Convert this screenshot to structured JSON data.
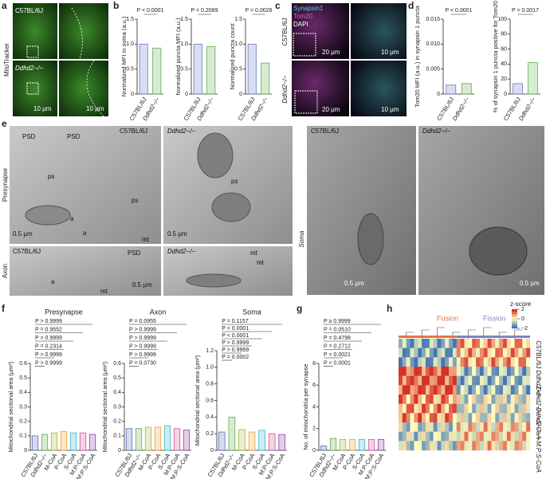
{
  "panel_labels": [
    "a",
    "b",
    "c",
    "d",
    "e",
    "f",
    "g",
    "h"
  ],
  "a": {
    "strain_labels": [
      "C57BL/6J",
      "Ddhd2−/−"
    ],
    "stain": "MitoTracker",
    "scale_bars": [
      "10 μm",
      "10 μm"
    ]
  },
  "c": {
    "stains": [
      "Synapsin1",
      "Tom20",
      "DAPI"
    ],
    "strain_labels": [
      "C57BL/6J",
      "Ddhd2−/−"
    ],
    "scale_bars": [
      "20 μm",
      "10 μm",
      "20 μm",
      "10 μm"
    ]
  },
  "e": {
    "row_labels": [
      "Presynapse",
      "Axon",
      "Soma"
    ],
    "image_titles": [
      "C57BL/6J",
      "Ddhd2−/−",
      "C57BL/6J",
      "Ddhd2−/−",
      "C57BL/6J",
      "Ddhd2−/−"
    ],
    "annotations": [
      "PSD",
      "PSD",
      "ps",
      "ps",
      "ps",
      "a",
      "a",
      "mt",
      "mt",
      "PSD",
      "a",
      "mt",
      "mt"
    ],
    "scale_bars": [
      "0.5 μm",
      "0.5 μm",
      "0.5 μm",
      "0.5 μm",
      "0.5 μm"
    ]
  },
  "h": {
    "title": "z-score",
    "ticks": [
      2,
      0,
      {
        "value": -2,
        "label": "−2"
      }
    ],
    "clusters": [
      "Fusion",
      "Fission"
    ],
    "row_labels": [
      "C57BL/6J",
      "Ddhd2−/−",
      "Ddhd2−/− +S-CoA",
      "Ddhd2−/− +M:P:S-CoA"
    ]
  },
  "chart_data": [
    {
      "type": "bar",
      "ylabel": "Normalized MFI in soma (a.u.)",
      "categories": [
        "C57BL/6J",
        "Ddhd2−/−"
      ],
      "values": [
        1.0,
        0.92
      ],
      "colors": [
        "#6b78c4",
        "#5fae4e"
      ],
      "ylim": [
        0,
        1.5
      ],
      "yticks": [
        0,
        0.5,
        {
          "value": 1,
          "label": "1.0"
        },
        1.5
      ],
      "annotations": [
        "P < 0.0001"
      ]
    },
    {
      "type": "bar",
      "ylabel": "Normalized puncta MFI (a.u.)",
      "categories": [
        "C57BL/6J",
        "Ddhd2−/−"
      ],
      "values": [
        1.0,
        0.95
      ],
      "colors": [
        "#6b78c4",
        "#5fae4e"
      ],
      "ylim": [
        0,
        1.5
      ],
      "yticks": [
        0,
        0.5,
        {
          "value": 1,
          "label": "1.0"
        },
        1.5
      ],
      "annotations": [
        "P = 0.2089"
      ]
    },
    {
      "type": "bar",
      "ylabel": "Normalized puncta count",
      "categories": [
        "C57BL/6J",
        "Ddhd2−/−"
      ],
      "values": [
        1.0,
        0.62
      ],
      "colors": [
        "#6b78c4",
        "#5fae4e"
      ],
      "ylim": [
        0,
        1.5
      ],
      "yticks": [
        0,
        0.5,
        {
          "value": 1,
          "label": "1.0"
        },
        1.5
      ],
      "annotations": [
        "P = 0.0026"
      ]
    },
    {
      "type": "bar",
      "ylabel": "Tom20 MFI (a.u.) in synapsin 1 puncta",
      "categories": [
        "C57BL/6J",
        "Ddhd2−/−"
      ],
      "values": [
        0.0018,
        0.0021
      ],
      "colors": [
        "#6b78c4",
        "#5fae4e"
      ],
      "ylim": [
        0,
        0.015
      ],
      "yticks": [
        0,
        0.005,
        {
          "value": 0.01,
          "label": "0.010"
        },
        0.015
      ],
      "annotations": [
        "P < 0.0001"
      ]
    },
    {
      "type": "bar",
      "ylabel": "% of synapsin 1 puncta positive for Tom20",
      "categories": [
        "C57BL/6J",
        "Ddhd2−/−"
      ],
      "values": [
        14,
        42
      ],
      "colors": [
        "#6b78c4",
        "#5fae4e"
      ],
      "ylim": [
        0,
        100
      ],
      "yticks": [
        0,
        20,
        40,
        60,
        80,
        100
      ],
      "annotations": [
        "P = 0.0017"
      ]
    },
    {
      "type": "bar",
      "title": "Presynapse",
      "ylabel": "Mitochondrial sectional area (μm²)",
      "categories": [
        "C57BL/6J",
        "Ddhd2−/−",
        "M-CoA",
        "P-CoA",
        "S-CoA",
        "M:P-CoA",
        "M:P:S-CoA"
      ],
      "values": [
        0.1,
        0.11,
        0.12,
        0.13,
        0.12,
        0.12,
        0.11
      ],
      "colors": [
        "#5b6bbf",
        "#5fae4e",
        "#a8b834",
        "#f0a030",
        "#35b6c9",
        "#d84f9a",
        "#8a3fa8"
      ],
      "ylim": [
        0,
        0.6
      ],
      "yticks": [
        0,
        0.1,
        0.2,
        0.3,
        0.4,
        0.5,
        0.6
      ],
      "annotations": [
        "P > 0.9999",
        "P = 0.9552",
        "P > 0.9999",
        "P = 0.2314",
        "P > 0.9999",
        "P > 0.9999"
      ]
    },
    {
      "type": "bar",
      "title": "Axon",
      "ylabel": "Mitochondrial sectional area (μm²)",
      "categories": [
        "C57BL/6J",
        "Ddhd2−/−",
        "M-CoA",
        "P-CoA",
        "S-CoA",
        "M:P-CoA",
        "M:P:S-CoA"
      ],
      "values": [
        0.15,
        0.15,
        0.16,
        0.16,
        0.17,
        0.15,
        0.14
      ],
      "colors": [
        "#5b6bbf",
        "#5fae4e",
        "#a8b834",
        "#f0a030",
        "#35b6c9",
        "#d84f9a",
        "#8a3fa8"
      ],
      "ylim": [
        0,
        0.6
      ],
      "yticks": [
        0,
        0.1,
        0.2,
        0.3,
        0.4,
        0.5,
        0.6
      ],
      "annotations": [
        "P = 0.0955",
        "P > 0.9999",
        "P > 0.9999",
        "P > 0.9999",
        "P > 0.9999",
        "P = 0.0730"
      ]
    },
    {
      "type": "bar",
      "title": "Soma",
      "ylabel": "Mitochondrial sectional area (μm²)",
      "categories": [
        "C57BL/6J",
        "Ddhd2−/−",
        "M-CoA",
        "P-CoA",
        "S-CoA",
        "M:P-CoA",
        "M:P:S-CoA"
      ],
      "values": [
        0.22,
        0.4,
        0.25,
        0.22,
        0.24,
        0.2,
        0.19
      ],
      "colors": [
        "#5b6bbf",
        "#5fae4e",
        "#a8b834",
        "#f0a030",
        "#35b6c9",
        "#d84f9a",
        "#8a3fa8"
      ],
      "ylim": [
        0,
        1.2
      ],
      "yticks": [
        0,
        0.2,
        0.4,
        0.6,
        0.8,
        {
          "value": 1,
          "label": "1.0"
        },
        1.2
      ],
      "annotations": [
        "P = 0.1157",
        "P < 0.0001",
        "P < 0.0001",
        "P > 0.9999",
        "P > 0.9999",
        "P = 0.0002"
      ]
    },
    {
      "type": "bar",
      "ylabel": "No. of mitochondria per synapse",
      "categories": [
        "C57BL/6J",
        "Ddhd2−/−",
        "M-CoA",
        "P-CoA",
        "S-CoA",
        "M:P-CoA",
        "M:P:S-CoA"
      ],
      "values": [
        0.4,
        1.1,
        1.0,
        1.0,
        1.0,
        1.0,
        1.0
      ],
      "colors": [
        "#5b6bbf",
        "#5fae4e",
        "#a8b834",
        "#f0a030",
        "#35b6c9",
        "#d84f9a",
        "#8a3fa8"
      ],
      "ylim": [
        0,
        8
      ],
      "yticks": [
        0,
        2,
        4,
        6,
        8
      ],
      "annotations": [
        "P ≥ 0.9999",
        "P = 0.0510",
        "P = 0.4798",
        "P = 0.2712",
        "P = 0.0021",
        "P < 0.0001"
      ]
    }
  ]
}
